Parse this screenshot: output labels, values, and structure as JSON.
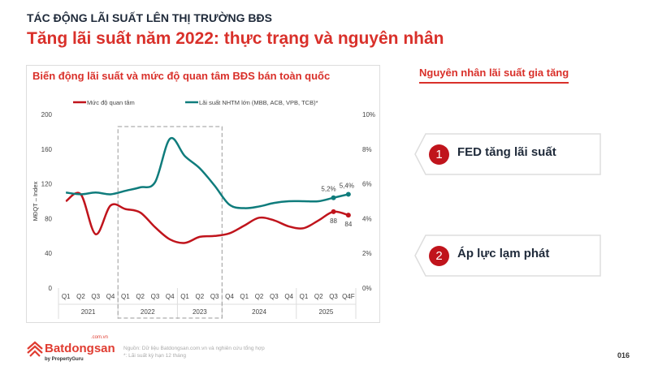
{
  "header": {
    "kicker": "TÁC ĐỘNG LÃI SUẤT LÊN THỊ TRƯỜNG BĐS",
    "title": "Tăng lãi suất năm 2022: thực trạng và nguyên nhân"
  },
  "chart_data": {
    "type": "line",
    "title": "Biến động lãi suất và mức độ quan tâm BĐS bán toàn quốc",
    "ylabel": "MĐQT – Index",
    "ylim": [
      0,
      200
    ],
    "y2lim": [
      0,
      10
    ],
    "yticks": [
      "0",
      "40",
      "80",
      "120",
      "160",
      "200"
    ],
    "y2ticks": [
      "0%",
      "2%",
      "4%",
      "6%",
      "8%",
      "10%"
    ],
    "quarters": [
      "Q1",
      "Q2",
      "Q3",
      "Q4",
      "Q1",
      "Q2",
      "Q3",
      "Q4",
      "Q1",
      "Q2",
      "Q3",
      "Q4",
      "Q1",
      "Q2",
      "Q3",
      "Q4",
      "Q1",
      "Q2",
      "Q3",
      "Q4F"
    ],
    "years": [
      "2021",
      "2022",
      "2023",
      "2024",
      "2025"
    ],
    "highlight_range": [
      "Q1 2022",
      "Q3 2023"
    ],
    "legend_position": "top",
    "series": [
      {
        "name": "Mức độ quan tâm",
        "axis": "left",
        "color": "#c0141c",
        "values": [
          100,
          108,
          62,
          95,
          91,
          87,
          70,
          56,
          52,
          59,
          60,
          63,
          72,
          81,
          78,
          71,
          69,
          78,
          88,
          84
        ],
        "labels": {
          "18": "88",
          "19": "84"
        }
      },
      {
        "name": "Lãi suất NHTM lớn (MBB, ACB, VPB, TCB)*",
        "axis": "right",
        "color": "#0f7c7c",
        "values": [
          5.5,
          5.4,
          5.5,
          5.4,
          5.6,
          5.8,
          6.1,
          8.6,
          7.6,
          6.9,
          5.9,
          4.8,
          4.6,
          4.7,
          4.9,
          5.0,
          5.0,
          5.0,
          5.2,
          5.4
        ],
        "labels": {
          "18": "5,2%",
          "19": "5,4%"
        }
      }
    ]
  },
  "reasons": {
    "title": "Nguyên nhân lãi suất gia tăng",
    "items": [
      {
        "num": "1",
        "text": "FED tăng lãi suất"
      },
      {
        "num": "2",
        "text": "Áp lực lạm phát"
      }
    ]
  },
  "footer": {
    "brand": "Batdongsan",
    "domain": ".com.vn",
    "by": "by PropertyGuru",
    "source": "Nguồn: Dữ liệu Batdongsan.com.vn và nghiên cứu tổng hợp",
    "note": "*: Lãi suất kỳ hạn 12 tháng",
    "page": "016"
  }
}
